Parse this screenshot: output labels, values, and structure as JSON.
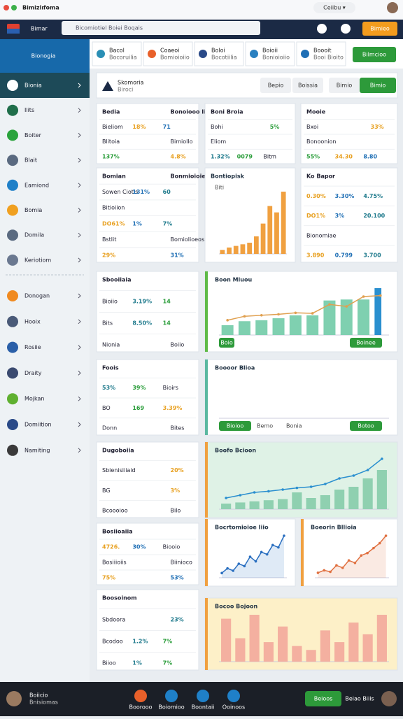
{
  "topbar": {
    "title": "Bimizlıfoma",
    "badge": "Ceiibu ▾"
  },
  "navbar": {
    "brand": "Bimar",
    "search": "Bicomiotiel Boiei Boqais",
    "button": "Bimieo"
  },
  "sidebar": {
    "header": "Bionogia",
    "items": [
      "Bionia",
      "Ilits",
      "Boiter",
      "Blait",
      "Eamiond",
      "Bomia",
      "Domila",
      "Keriotiom",
      "Donogan",
      "Hooix",
      "Rosiie",
      "Draity",
      "Mojkan",
      "Domiition",
      "Namiting"
    ]
  },
  "tiles": [
    {
      "title": "Bacol",
      "sub": "Bocoruilia"
    },
    {
      "title": "Coaeoi",
      "sub": "Bomioioiio"
    },
    {
      "title": "Boloi",
      "sub": "Bocotiilia"
    },
    {
      "title": "Boioii",
      "sub": "Bonioioiio"
    },
    {
      "title": "Boooit",
      "sub": "Booi Bioito"
    }
  ],
  "tile_button": "Bilmcioo",
  "header": {
    "title": "Skomoria",
    "sub": "Biroci",
    "buttons": [
      "Bepio",
      "Boissia",
      "Bimio",
      "Bimio"
    ]
  },
  "cards": [
    {
      "rows": [
        [
          "Bedia",
          "Bonoiooo Iio"
        ],
        [
          "Bieliom",
          "18%",
          "71"
        ],
        [
          "Blitoia",
          "Bimiollo"
        ],
        [
          "137%",
          "4.8%"
        ]
      ]
    },
    {
      "rows": [
        [
          "Bomian",
          "Bonmioioiee Sui"
        ],
        [
          "Sowen Ciotis",
          "131%",
          "60"
        ],
        [
          "Bitioiion"
        ],
        [
          "DO61%",
          "1%",
          "7%"
        ],
        [
          "Bstlit",
          "Bomiolioeos"
        ],
        [
          "29%",
          "31%"
        ]
      ]
    },
    {
      "rows": [
        [
          "Sbooiiaia"
        ],
        [
          "Bioiio",
          "3.19%",
          "14"
        ],
        [
          "Bits",
          "8.50%",
          "14"
        ],
        [
          "Nionia",
          "Boiio"
        ]
      ]
    },
    {
      "rows": [
        [
          "Foois"
        ],
        [
          "53%",
          "39%",
          "Bioirs"
        ],
        [
          "BO",
          "169",
          "3.39%"
        ],
        [
          "Donn",
          "Bites"
        ]
      ]
    },
    {
      "rows": [
        [
          "Dugoboiia"
        ],
        [
          "Sbienisiiiaid",
          "20%"
        ],
        [
          "BG",
          "3%"
        ],
        [
          "Bcoooioo",
          "Bilo"
        ]
      ]
    },
    {
      "rows": [
        [
          "Bosiioaiia"
        ],
        [
          "4726.",
          "30%",
          "Biooio"
        ],
        [
          "Bosiiioiis",
          "Biinioco"
        ],
        [
          "75%",
          "53%"
        ]
      ]
    },
    {
      "rows": [
        [
          "Boosoinom"
        ],
        [
          "Sbdoora",
          "23%"
        ],
        [
          "Bcodoo",
          "1.2%",
          "7%"
        ],
        [
          "Biioo",
          "1%",
          "7%"
        ]
      ]
    },
    {
      "rows": [
        [
          "Boni Broia"
        ],
        [
          "Bohi",
          "5%"
        ],
        [
          "Eliom"
        ],
        [
          "1.32%",
          "0079",
          "Bitm"
        ]
      ]
    },
    {
      "rows": [
        [
          "Mooie"
        ],
        [
          "Bxoi",
          "33%"
        ],
        [
          "Bonoonion"
        ],
        [
          "55%",
          "34.30",
          "8.80"
        ]
      ]
    },
    {
      "rows": [
        [
          "Ko Bapor"
        ],
        [
          "0.30%",
          "3.30%",
          "4.75%"
        ],
        [
          "DO1%",
          "3%",
          "20.100"
        ],
        [
          "Bionomiae"
        ],
        [
          "3.890",
          "0.799",
          "3.700"
        ]
      ]
    }
  ],
  "charts": [
    {
      "title": "Bontiopisk",
      "sub": "Biti",
      "color": "#f0a040",
      "values": [
        5,
        8,
        10,
        12,
        14,
        22,
        38,
        60,
        52,
        78
      ]
    },
    {
      "title": "Boon Mluou",
      "color": "#7fd0b0",
      "values": [
        20,
        28,
        30,
        34,
        40,
        40,
        70,
        72,
        72,
        95
      ],
      "line": [
        30,
        38,
        40,
        42,
        45,
        44,
        62,
        58,
        78,
        80
      ],
      "line_color": "#e0a050",
      "buttons": [
        "Boio",
        "Boinee"
      ]
    },
    {
      "title": "Boooor Blioa",
      "color": "#5ab8a0",
      "values": [],
      "buttons": [
        "Bioioo",
        "Bemo",
        "Bonia",
        "Botoo"
      ]
    },
    {
      "title": "Boofo Bcioon",
      "color": "#8fd0b0",
      "values": [
        10,
        12,
        14,
        16,
        18,
        30,
        20,
        25,
        35,
        40,
        55,
        70
      ],
      "line": [
        20,
        25,
        30,
        32,
        35,
        38,
        40,
        45,
        55,
        60,
        70,
        90
      ],
      "line_color": "#2a8fcf"
    },
    {
      "title": "Bocrtomioioe Iiio",
      "color": "#2a6fc0",
      "values": [],
      "line": [
        10,
        20,
        15,
        30,
        25,
        45,
        35,
        55,
        50,
        70,
        65,
        90
      ]
    },
    {
      "title": "Boeorin Bllioia",
      "color": "#e07040",
      "values": [],
      "line": [
        10,
        15,
        12,
        25,
        20,
        35,
        30,
        45,
        50,
        60,
        70,
        85
      ]
    },
    {
      "title": "Bocoo Bojoon",
      "color": "#f4b0a0",
      "values": [
        55,
        30,
        60,
        25,
        45,
        20,
        15,
        40,
        25,
        50,
        35,
        60
      ]
    }
  ],
  "bottombar": {
    "user": "Boiicio",
    "user_sub": "Bnisiomas",
    "nav": [
      "Boorooo",
      "Boiomioo",
      "Boontaii",
      "Ooinoos"
    ],
    "button": "Beioos",
    "right": "Beiao Biiis"
  }
}
